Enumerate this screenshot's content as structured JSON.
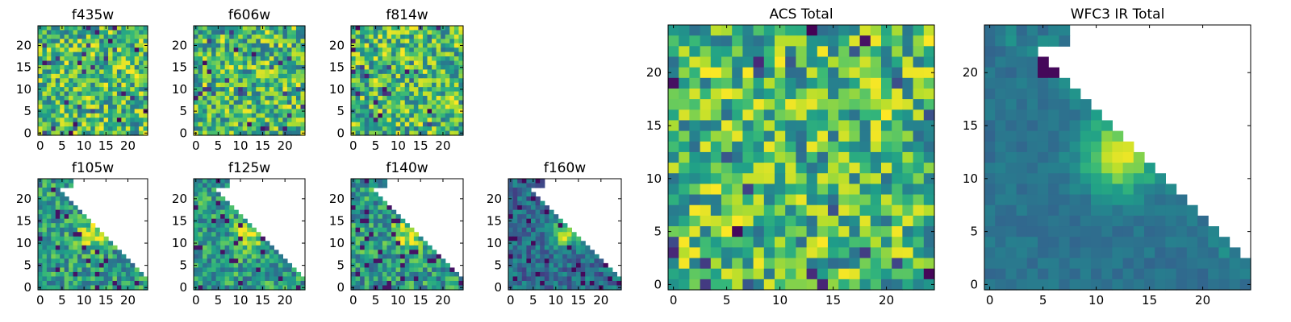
{
  "chart_data": [
    {
      "type": "heatmap",
      "title": "f435w",
      "pattern": "noise",
      "seed": 11,
      "xticks": [
        "0",
        "5",
        "10",
        "15",
        "20"
      ],
      "yticks": [
        "0",
        "5",
        "10",
        "15",
        "20"
      ],
      "xlim": [
        0,
        25
      ],
      "ylim": [
        0,
        25
      ]
    },
    {
      "type": "heatmap",
      "title": "f606w",
      "pattern": "noise",
      "seed": 23,
      "xticks": [
        "0",
        "5",
        "10",
        "15",
        "20"
      ],
      "yticks": [
        "0",
        "5",
        "10",
        "15",
        "20"
      ],
      "xlim": [
        0,
        25
      ],
      "ylim": [
        0,
        25
      ]
    },
    {
      "type": "heatmap",
      "title": "f814w",
      "pattern": "noise",
      "seed": 37,
      "xticks": [
        "0",
        "5",
        "10",
        "15",
        "20"
      ],
      "yticks": [
        "0",
        "5",
        "10",
        "15",
        "20"
      ],
      "xlim": [
        0,
        25
      ],
      "ylim": [
        0,
        25
      ]
    },
    {
      "type": "heatmap",
      "title": "f105w",
      "pattern": "triangle",
      "seed": 41,
      "xticks": [
        "0",
        "5",
        "10",
        "15",
        "20"
      ],
      "yticks": [
        "0",
        "5",
        "10",
        "15",
        "20"
      ],
      "xlim": [
        0,
        25
      ],
      "ylim": [
        0,
        25
      ]
    },
    {
      "type": "heatmap",
      "title": "f125w",
      "pattern": "triangle",
      "seed": 53,
      "xticks": [
        "0",
        "5",
        "10",
        "15",
        "20"
      ],
      "yticks": [
        "0",
        "5",
        "10",
        "15",
        "20"
      ],
      "xlim": [
        0,
        25
      ],
      "ylim": [
        0,
        25
      ]
    },
    {
      "type": "heatmap",
      "title": "f140w",
      "pattern": "triangle",
      "seed": 67,
      "xticks": [
        "0",
        "5",
        "10",
        "15",
        "20"
      ],
      "yticks": [
        "0",
        "5",
        "10",
        "15",
        "20"
      ],
      "xlim": [
        0,
        25
      ],
      "ylim": [
        0,
        25
      ]
    },
    {
      "type": "heatmap",
      "title": "f160w",
      "pattern": "triangle-dark",
      "seed": 79,
      "xticks": [
        "0",
        "5",
        "10",
        "15",
        "20"
      ],
      "yticks": [
        "0",
        "5",
        "10",
        "15",
        "20"
      ],
      "xlim": [
        0,
        25
      ],
      "ylim": [
        0,
        25
      ]
    },
    {
      "type": "heatmap",
      "title": "ACS Total",
      "pattern": "noise",
      "seed": 97,
      "xticks": [
        "0",
        "5",
        "10",
        "15",
        "20"
      ],
      "yticks": [
        "0",
        "5",
        "10",
        "15",
        "20"
      ],
      "xlim": [
        0,
        25
      ],
      "ylim": [
        0,
        25
      ]
    },
    {
      "type": "heatmap",
      "title": "WFC3 IR Total",
      "pattern": "triangle-smooth",
      "seed": 113,
      "xticks": [
        "0",
        "5",
        "10",
        "15",
        "20"
      ],
      "yticks": [
        "0",
        "5",
        "10",
        "15",
        "20"
      ],
      "xlim": [
        0,
        25
      ],
      "ylim": [
        0,
        25
      ]
    }
  ],
  "colormap": "viridis"
}
